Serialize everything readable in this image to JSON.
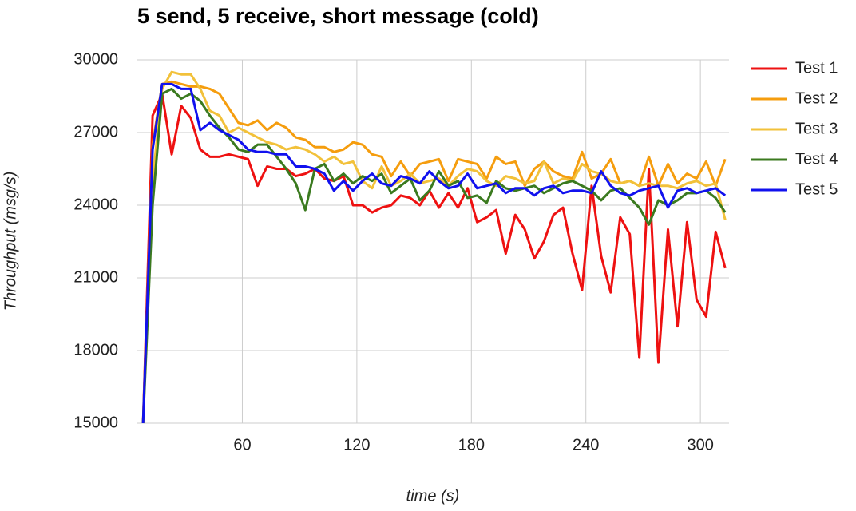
{
  "chart_data": {
    "type": "line",
    "title": "5 send, 5 receive, short message (cold)",
    "x_label": "time (s)",
    "y_label": "Throughput (msg/s)",
    "x": [
      8,
      13,
      18,
      23,
      28,
      33,
      38,
      43,
      48,
      53,
      58,
      63,
      68,
      73,
      78,
      83,
      88,
      93,
      98,
      103,
      108,
      113,
      118,
      123,
      128,
      133,
      138,
      143,
      148,
      153,
      158,
      163,
      168,
      173,
      178,
      183,
      188,
      193,
      198,
      203,
      208,
      213,
      218,
      223,
      228,
      233,
      238,
      243,
      248,
      253,
      258,
      263,
      268,
      273,
      278,
      283,
      288,
      293,
      298,
      303,
      308,
      313
    ],
    "series": [
      {
        "name": "Test 1",
        "color": "#ee1111",
        "values": [
          15000,
          27700,
          28600,
          26100,
          28100,
          27600,
          26300,
          26000,
          26000,
          26100,
          26000,
          25900,
          24800,
          25600,
          25500,
          25500,
          25200,
          25300,
          25500,
          25100,
          25000,
          25200,
          24000,
          24000,
          23700,
          23900,
          24000,
          24400,
          24300,
          24000,
          24600,
          23900,
          24500,
          23900,
          24700,
          23300,
          23500,
          23800,
          22000,
          23600,
          23000,
          21800,
          22500,
          23600,
          23900,
          22000,
          20500,
          24800,
          21900,
          20400,
          23500,
          22800,
          17700,
          25500,
          17500,
          23000,
          19000,
          23300,
          20100,
          19400,
          22900,
          21400
        ]
      },
      {
        "name": "Test 2",
        "color": "#f59d0e",
        "values": [
          15000,
          26500,
          29000,
          29100,
          29000,
          28900,
          28900,
          28800,
          28600,
          28000,
          27400,
          27300,
          27500,
          27100,
          27400,
          27200,
          26800,
          26700,
          26400,
          26400,
          26200,
          26300,
          26600,
          26500,
          26100,
          26000,
          25200,
          25800,
          25200,
          25700,
          25800,
          25900,
          25000,
          25900,
          25800,
          25700,
          25100,
          26000,
          25700,
          25800,
          24800,
          25500,
          25800,
          25400,
          25200,
          25100,
          26200,
          25100,
          25300,
          25900,
          24900,
          25000,
          24800,
          26000,
          24800,
          25700,
          24900,
          25300,
          25100,
          25800,
          24800,
          25900
        ]
      },
      {
        "name": "Test 3",
        "color": "#f2c13a",
        "values": [
          15000,
          25000,
          28800,
          29500,
          29400,
          29400,
          28800,
          27900,
          27700,
          27000,
          27200,
          27000,
          26800,
          26600,
          26500,
          26300,
          26400,
          26300,
          26100,
          25800,
          26000,
          25700,
          25800,
          25000,
          24700,
          25600,
          24800,
          25000,
          25300,
          24900,
          25000,
          25100,
          24800,
          25200,
          25500,
          25400,
          25000,
          24800,
          25200,
          25100,
          24900,
          25000,
          25800,
          24900,
          25100,
          25000,
          25700,
          25400,
          25300,
          25000,
          24900,
          25000,
          24800,
          24900,
          24800,
          24800,
          24700,
          24900,
          25000,
          24800,
          24900,
          23400
        ]
      },
      {
        "name": "Test 4",
        "color": "#3b7a1f",
        "values": [
          15000,
          24000,
          28600,
          28800,
          28400,
          28600,
          28300,
          27700,
          27200,
          26800,
          26300,
          26200,
          26500,
          26500,
          26000,
          25500,
          24900,
          23800,
          25500,
          25700,
          25000,
          25300,
          24900,
          25200,
          25000,
          25300,
          24500,
          24800,
          25100,
          24200,
          24600,
          25400,
          24800,
          25000,
          24300,
          24400,
          24100,
          25000,
          24700,
          24600,
          24700,
          24800,
          24500,
          24700,
          24900,
          25000,
          24800,
          24600,
          24200,
          24600,
          24700,
          24300,
          23900,
          23200,
          24200,
          24000,
          24200,
          24500,
          24500,
          24600,
          24300,
          23700
        ]
      },
      {
        "name": "Test 5",
        "color": "#1111ee",
        "values": [
          15000,
          26300,
          29000,
          29000,
          28800,
          28800,
          27100,
          27400,
          27100,
          26900,
          26700,
          26300,
          26200,
          26200,
          26100,
          26100,
          25600,
          25600,
          25500,
          25300,
          24600,
          25000,
          24600,
          25000,
          25300,
          24900,
          24800,
          25200,
          25100,
          24900,
          25400,
          25000,
          24700,
          24800,
          25300,
          24700,
          24800,
          24900,
          24500,
          24700,
          24700,
          24400,
          24700,
          24800,
          24500,
          24600,
          24600,
          24500,
          25400,
          24800,
          24500,
          24400,
          24600,
          24700,
          24800,
          23900,
          24600,
          24700,
          24500,
          24600,
          24700,
          24400
        ]
      }
    ],
    "xlim": [
      5,
      315
    ],
    "xticks": [
      60,
      120,
      180,
      240,
      300
    ],
    "ylim": [
      15000,
      30000
    ],
    "yticks": [
      15000,
      18000,
      21000,
      24000,
      27000,
      30000
    ],
    "grid": true,
    "legend": "right"
  }
}
